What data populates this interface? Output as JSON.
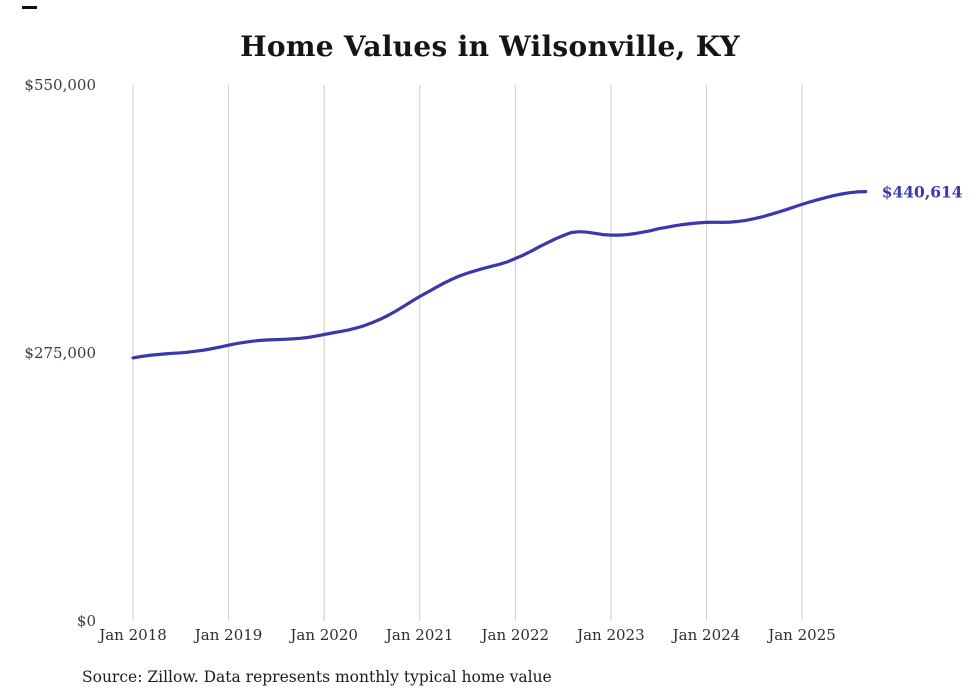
{
  "title": "Home Values in Wilsonville, KY",
  "source_note": "Source: Zillow. Data represents monthly typical home value",
  "colors": {
    "line": "#3b38ab",
    "gridline": "#cccccc",
    "title_text": "#151515",
    "axis_text": "#2e2e2e"
  },
  "chart_data": {
    "type": "line",
    "title": "Home Values in Wilsonville, KY",
    "xlabel": "",
    "ylabel": "",
    "ylim": [
      0,
      550000
    ],
    "grid": "vertical-only",
    "legend_position": "none",
    "y_tick_values": [
      0,
      275000,
      550000
    ],
    "y_tick_labels": [
      "$0",
      "$275,000",
      "$550,000"
    ],
    "x_tick_labels": [
      "Jan 2018",
      "Jan 2019",
      "Jan 2020",
      "Jan 2021",
      "Jan 2022",
      "Jan 2023",
      "Jan 2024",
      "Jan 2025"
    ],
    "x_start": "2018-01",
    "x_interval": "month",
    "end_value": 440614,
    "annotation": {
      "text": "$440,614",
      "color": "#3b38ab"
    },
    "series": [
      {
        "name": "Typical home value",
        "color": "#3b38ab",
        "values": [
          270000,
          271400,
          272500,
          273400,
          274100,
          274700,
          275200,
          275900,
          276900,
          278100,
          279600,
          281300,
          283000,
          284600,
          286000,
          287100,
          287900,
          288400,
          288800,
          289100,
          289500,
          290100,
          291000,
          292300,
          294000,
          295500,
          297000,
          298500,
          300500,
          303000,
          306000,
          309500,
          313500,
          318000,
          323000,
          328000,
          333000,
          337500,
          342000,
          346500,
          350500,
          354000,
          357000,
          359500,
          361800,
          364000,
          366000,
          368500,
          372000,
          375500,
          379500,
          384000,
          388000,
          392000,
          395500,
          398500,
          399500,
          399000,
          397800,
          396500,
          396000,
          396000,
          396500,
          397500,
          399000,
          400500,
          402500,
          404000,
          405500,
          406800,
          407800,
          408500,
          409000,
          409200,
          409000,
          409300,
          410000,
          411200,
          412800,
          414800,
          417000,
          419500,
          422000,
          424800,
          427500,
          430000,
          432300,
          434500,
          436500,
          438200,
          439500,
          440300,
          440614
        ]
      }
    ]
  }
}
